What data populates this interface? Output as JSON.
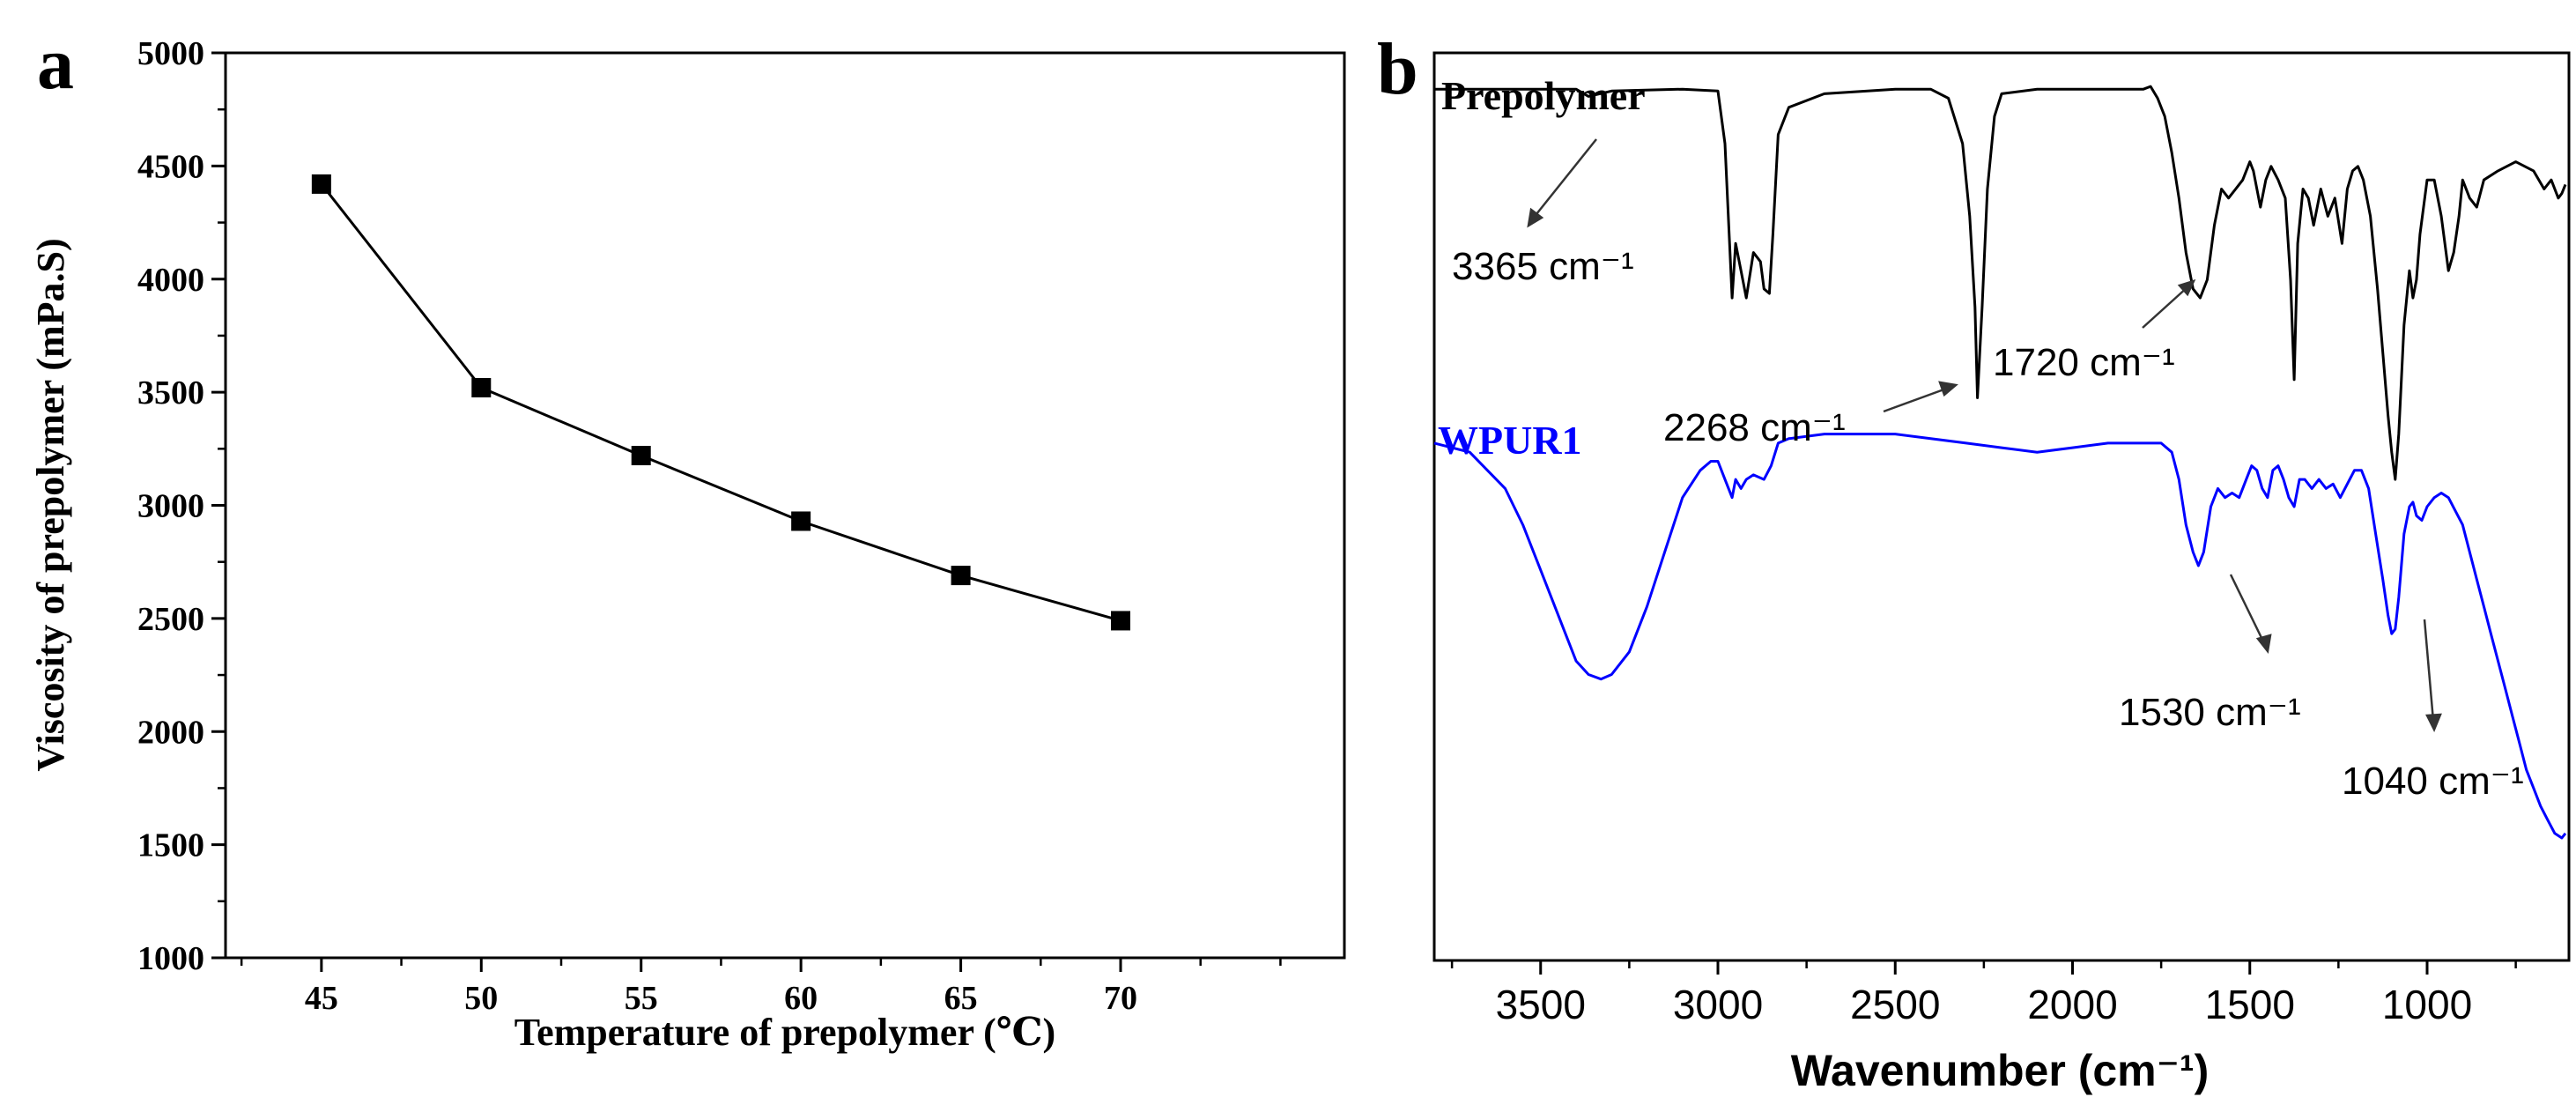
{
  "chart_data": [
    {
      "panel_label": "a",
      "type": "line",
      "title": "",
      "xlabel": "Temperature of prepolymer (℃)",
      "ylabel": "Viscosity of prepolymer (mPa.S)",
      "xlim": [
        42,
        77
      ],
      "ylim": [
        1000,
        5000
      ],
      "xticks": [
        45,
        50,
        55,
        60,
        65,
        70
      ],
      "yticks": [
        1000,
        1500,
        2000,
        2500,
        3000,
        3500,
        4000,
        4500,
        5000
      ],
      "x": [
        45,
        50,
        55,
        60,
        65,
        70
      ],
      "y": [
        4420,
        3520,
        3220,
        2930,
        2690,
        2490
      ],
      "marker": "square",
      "color": "#000000"
    },
    {
      "panel_label": "b",
      "type": "line",
      "xlabel": "Wavenumber (cm⁻¹)",
      "xlim": [
        3800,
        600
      ],
      "xticks": [
        3500,
        3000,
        2500,
        2000,
        1500,
        1000
      ],
      "ylim": [
        0,
        100
      ],
      "y_axis_labels": false,
      "series": [
        {
          "name": "Prepolymer",
          "color": "#000000",
          "points": [
            [
              3800,
              96
            ],
            [
              3500,
              96
            ],
            [
              3400,
              96
            ],
            [
              3365,
              95.2
            ],
            [
              3300,
              95.8
            ],
            [
              3100,
              96
            ],
            [
              3000,
              95.8
            ],
            [
              2980,
              90
            ],
            [
              2960,
              73
            ],
            [
              2950,
              79
            ],
            [
              2935,
              76
            ],
            [
              2920,
              73
            ],
            [
              2900,
              78
            ],
            [
              2880,
              77
            ],
            [
              2870,
              74
            ],
            [
              2855,
              73.5
            ],
            [
              2845,
              80
            ],
            [
              2830,
              91
            ],
            [
              2800,
              94
            ],
            [
              2700,
              95.5
            ],
            [
              2500,
              96
            ],
            [
              2400,
              96
            ],
            [
              2350,
              95
            ],
            [
              2310,
              90
            ],
            [
              2290,
              82
            ],
            [
              2275,
              72
            ],
            [
              2268,
              62
            ],
            [
              2255,
              72
            ],
            [
              2240,
              85
            ],
            [
              2220,
              93
            ],
            [
              2200,
              95.5
            ],
            [
              2100,
              96
            ],
            [
              1900,
              96
            ],
            [
              1800,
              96
            ],
            [
              1780,
              96.3
            ],
            [
              1760,
              95
            ],
            [
              1740,
              93
            ],
            [
              1720,
              89
            ],
            [
              1700,
              84
            ],
            [
              1680,
              78
            ],
            [
              1660,
              74
            ],
            [
              1640,
              73
            ],
            [
              1620,
              75
            ],
            [
              1600,
              81
            ],
            [
              1580,
              85
            ],
            [
              1560,
              84
            ],
            [
              1540,
              85
            ],
            [
              1520,
              86
            ],
            [
              1500,
              88
            ],
            [
              1490,
              87
            ],
            [
              1470,
              83
            ],
            [
              1455,
              86
            ],
            [
              1440,
              87.5
            ],
            [
              1420,
              86
            ],
            [
              1400,
              84
            ],
            [
              1385,
              75
            ],
            [
              1375,
              64
            ],
            [
              1365,
              79
            ],
            [
              1350,
              85
            ],
            [
              1335,
              84
            ],
            [
              1320,
              81
            ],
            [
              1300,
              85
            ],
            [
              1280,
              82
            ],
            [
              1260,
              84
            ],
            [
              1240,
              79
            ],
            [
              1225,
              85
            ],
            [
              1210,
              87
            ],
            [
              1195,
              87.5
            ],
            [
              1180,
              86
            ],
            [
              1160,
              82
            ],
            [
              1140,
              74
            ],
            [
              1125,
              67
            ],
            [
              1110,
              60
            ],
            [
              1100,
              56
            ],
            [
              1090,
              53
            ],
            [
              1080,
              58
            ],
            [
              1065,
              70
            ],
            [
              1050,
              76
            ],
            [
              1040,
              73
            ],
            [
              1030,
              75
            ],
            [
              1020,
              80
            ],
            [
              1000,
              86
            ],
            [
              980,
              86
            ],
            [
              960,
              82
            ],
            [
              940,
              76
            ],
            [
              925,
              78
            ],
            [
              910,
              82
            ],
            [
              900,
              86
            ],
            [
              880,
              84
            ],
            [
              860,
              83
            ],
            [
              840,
              86
            ],
            [
              800,
              87
            ],
            [
              750,
              88
            ],
            [
              700,
              87
            ],
            [
              670,
              85
            ],
            [
              650,
              86
            ],
            [
              630,
              84
            ],
            [
              620,
              84.5
            ],
            [
              610,
              85.5
            ]
          ]
        },
        {
          "name": "WPUR1",
          "color": "#0000ff",
          "points": [
            [
              3800,
              57
            ],
            [
              3700,
              56
            ],
            [
              3600,
              52
            ],
            [
              3550,
              48
            ],
            [
              3500,
              43
            ],
            [
              3450,
              38
            ],
            [
              3400,
              33
            ],
            [
              3365,
              31.5
            ],
            [
              3330,
              31
            ],
            [
              3300,
              31.5
            ],
            [
              3250,
              34
            ],
            [
              3200,
              39
            ],
            [
              3150,
              45
            ],
            [
              3100,
              51
            ],
            [
              3050,
              54
            ],
            [
              3020,
              55
            ],
            [
              3000,
              55
            ],
            [
              2980,
              53
            ],
            [
              2960,
              51
            ],
            [
              2950,
              53
            ],
            [
              2935,
              52
            ],
            [
              2920,
              53
            ],
            [
              2900,
              53.5
            ],
            [
              2870,
              53
            ],
            [
              2850,
              54.5
            ],
            [
              2830,
              57
            ],
            [
              2800,
              57.5
            ],
            [
              2700,
              58
            ],
            [
              2600,
              58
            ],
            [
              2500,
              58
            ],
            [
              2400,
              57.5
            ],
            [
              2300,
              57
            ],
            [
              2200,
              56.5
            ],
            [
              2100,
              56
            ],
            [
              2000,
              56.5
            ],
            [
              1900,
              57
            ],
            [
              1800,
              57
            ],
            [
              1750,
              57
            ],
            [
              1720,
              56
            ],
            [
              1700,
              53
            ],
            [
              1680,
              48
            ],
            [
              1660,
              45
            ],
            [
              1645,
              43.5
            ],
            [
              1630,
              45
            ],
            [
              1610,
              50
            ],
            [
              1590,
              52
            ],
            [
              1570,
              51
            ],
            [
              1550,
              51.5
            ],
            [
              1530,
              51
            ],
            [
              1510,
              53
            ],
            [
              1495,
              54.5
            ],
            [
              1480,
              54
            ],
            [
              1465,
              52
            ],
            [
              1450,
              51
            ],
            [
              1435,
              54
            ],
            [
              1420,
              54.5
            ],
            [
              1405,
              53
            ],
            [
              1390,
              51
            ],
            [
              1375,
              50
            ],
            [
              1360,
              53
            ],
            [
              1345,
              53
            ],
            [
              1325,
              52
            ],
            [
              1305,
              53
            ],
            [
              1285,
              52
            ],
            [
              1265,
              52.5
            ],
            [
              1245,
              51
            ],
            [
              1225,
              52.5
            ],
            [
              1205,
              54
            ],
            [
              1185,
              54
            ],
            [
              1165,
              52
            ],
            [
              1145,
              47
            ],
            [
              1125,
              42
            ],
            [
              1110,
              38
            ],
            [
              1100,
              36
            ],
            [
              1090,
              36.5
            ],
            [
              1080,
              40
            ],
            [
              1065,
              47
            ],
            [
              1050,
              50
            ],
            [
              1040,
              50.5
            ],
            [
              1030,
              49
            ],
            [
              1015,
              48.5
            ],
            [
              1000,
              50
            ],
            [
              980,
              51
            ],
            [
              960,
              51.5
            ],
            [
              940,
              51
            ],
            [
              920,
              49.5
            ],
            [
              900,
              48
            ],
            [
              880,
              45
            ],
            [
              860,
              42
            ],
            [
              840,
              39
            ],
            [
              820,
              36
            ],
            [
              800,
              33
            ],
            [
              780,
              30
            ],
            [
              760,
              27
            ],
            [
              740,
              24
            ],
            [
              720,
              21
            ],
            [
              700,
              19
            ],
            [
              680,
              17
            ],
            [
              660,
              15.5
            ],
            [
              640,
              14
            ],
            [
              620,
              13.5
            ],
            [
              610,
              14
            ]
          ]
        }
      ],
      "series_labels": [
        "Prepolymer",
        "WPUR1"
      ],
      "annotations": [
        {
          "text": "3365 cm⁻¹",
          "x": 3365
        },
        {
          "text": "2268 cm⁻¹",
          "x": 2268
        },
        {
          "text": "1720 cm⁻¹",
          "x": 1720
        },
        {
          "text": "1530 cm⁻¹",
          "x": 1530
        },
        {
          "text": "1040 cm⁻¹",
          "x": 1040
        }
      ]
    }
  ]
}
